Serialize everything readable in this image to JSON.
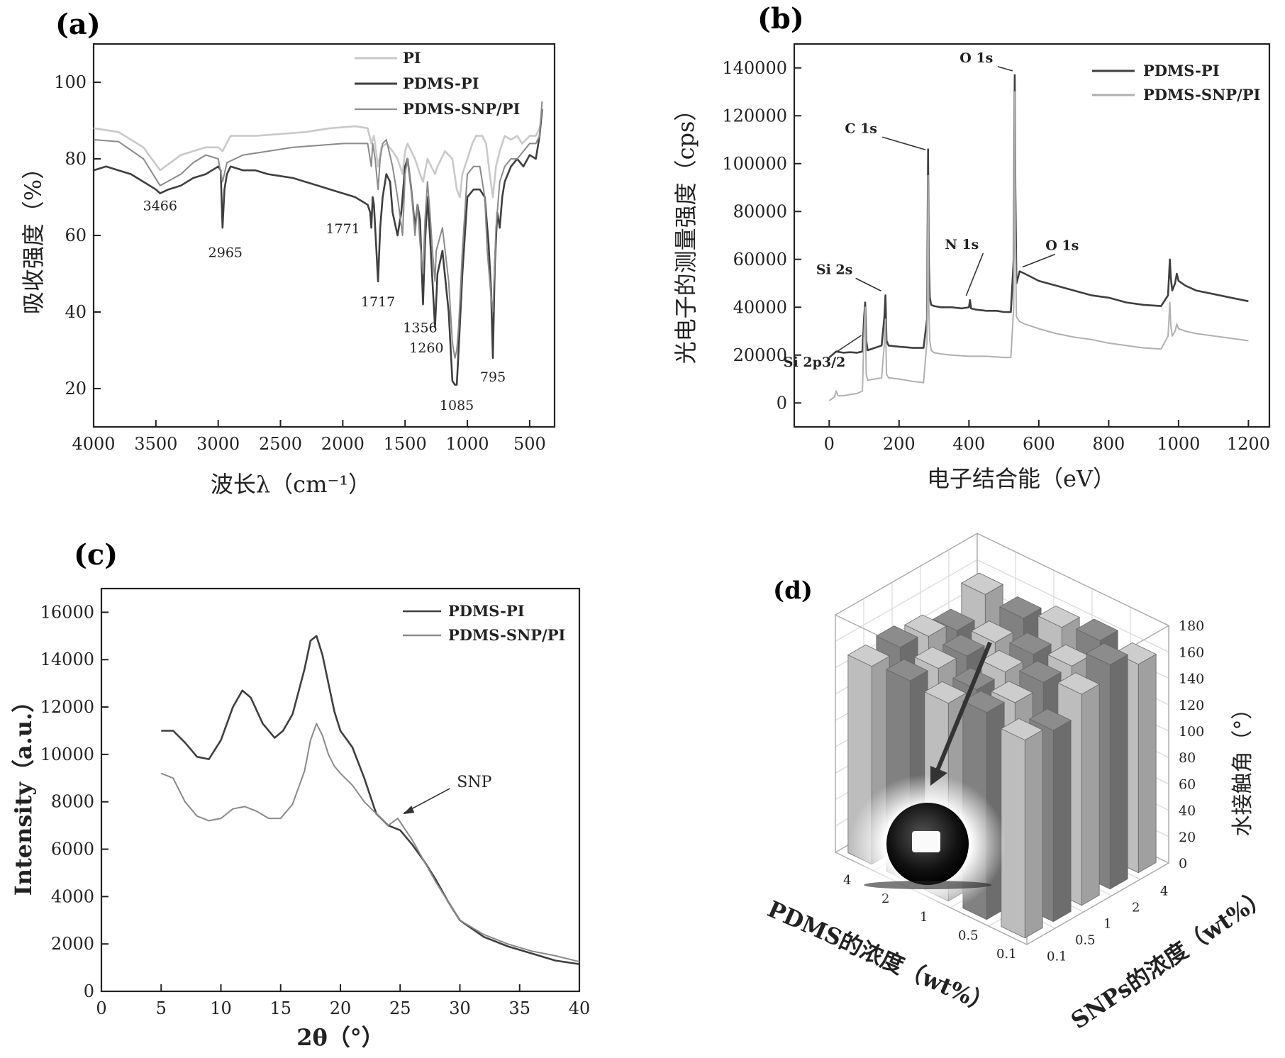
{
  "colors": {
    "PI": "#c9c9c9",
    "PDMS-PI": "#3f3f3f",
    "PDMS-SNP/PI": "#8a8a8a",
    "SNP_b": "#b0b0b0",
    "bar_dark": "#8b8b8b",
    "bar_light": "#cfcfcf"
  },
  "chart_data": [
    {
      "id": "a",
      "panel_label": "(a)",
      "type": "line",
      "xlabel": "波长λ（cm⁻¹）",
      "ylabel": "吸收强度（%）",
      "xlim": [
        4000,
        300
      ],
      "ylim": [
        10,
        110
      ],
      "xticks": [
        4000,
        3500,
        3000,
        2500,
        2000,
        1500,
        1000,
        500
      ],
      "yticks": [
        20,
        40,
        60,
        80,
        100
      ],
      "legend": [
        "PI",
        "PDMS-PI",
        "PDMS-SNP/PI"
      ],
      "legend_position": "top-right",
      "series": [
        {
          "name": "PI",
          "x": [
            4000,
            3800,
            3600,
            3466,
            3300,
            3100,
            3000,
            2965,
            2900,
            2700,
            2500,
            2300,
            2100,
            1900,
            1800,
            1771,
            1750,
            1717,
            1690,
            1650,
            1600,
            1560,
            1520,
            1500,
            1480,
            1420,
            1380,
            1356,
            1320,
            1290,
            1260,
            1240,
            1180,
            1120,
            1085,
            1060,
            1040,
            1000,
            960,
            930,
            880,
            850,
            820,
            795,
            770,
            740,
            700,
            650,
            600,
            560,
            500,
            450,
            420,
            400
          ],
          "y": [
            88,
            87,
            83,
            77,
            81,
            83,
            83,
            82,
            86,
            86,
            86.5,
            87,
            88,
            88.5,
            88,
            84,
            86,
            78,
            83,
            84,
            82,
            80,
            76,
            82,
            84,
            80,
            76,
            74,
            80,
            78,
            76,
            78,
            82,
            80,
            72,
            70,
            76,
            80,
            84,
            86,
            86,
            84,
            76,
            70,
            78,
            82,
            86,
            85,
            86,
            84,
            86,
            86,
            88,
            92
          ]
        },
        {
          "name": "PDMS-PI",
          "x": [
            4000,
            3900,
            3800,
            3700,
            3600,
            3500,
            3466,
            3400,
            3300,
            3200,
            3100,
            3050,
            3000,
            2980,
            2965,
            2950,
            2930,
            2900,
            2800,
            2700,
            2600,
            2500,
            2400,
            2300,
            2200,
            2100,
            2000,
            1900,
            1850,
            1800,
            1780,
            1771,
            1760,
            1750,
            1730,
            1717,
            1700,
            1680,
            1650,
            1620,
            1600,
            1560,
            1530,
            1500,
            1480,
            1450,
            1420,
            1400,
            1380,
            1356,
            1340,
            1320,
            1300,
            1280,
            1260,
            1240,
            1200,
            1150,
            1120,
            1100,
            1085,
            1070,
            1040,
            1000,
            950,
            900,
            860,
            830,
            810,
            795,
            780,
            760,
            740,
            720,
            700,
            650,
            600,
            550,
            500,
            450,
            420,
            400
          ],
          "y": [
            77,
            78,
            77,
            76,
            74,
            72,
            71,
            72,
            73,
            75,
            76,
            77,
            78,
            77,
            62,
            72,
            76,
            78,
            77,
            77,
            76,
            75.5,
            75,
            74,
            73,
            72,
            71,
            70,
            69,
            68,
            66,
            62,
            70,
            68,
            56,
            48,
            62,
            70,
            76,
            74,
            66,
            60,
            66,
            78,
            80,
            72,
            62,
            68,
            64,
            42,
            58,
            70,
            60,
            48,
            36,
            50,
            56,
            40,
            22,
            21,
            21,
            30,
            50,
            70,
            72,
            72,
            70,
            58,
            46,
            28,
            52,
            66,
            62,
            70,
            74,
            78,
            80,
            78,
            81,
            80,
            86,
            93
          ]
        },
        {
          "name": "PDMS-SNP/PI",
          "x": [
            4000,
            3800,
            3600,
            3466,
            3300,
            3200,
            3100,
            3000,
            2965,
            2930,
            2800,
            2600,
            2400,
            2200,
            2000,
            1900,
            1800,
            1771,
            1760,
            1740,
            1717,
            1700,
            1680,
            1650,
            1600,
            1560,
            1520,
            1500,
            1480,
            1450,
            1420,
            1400,
            1380,
            1356,
            1340,
            1320,
            1300,
            1280,
            1260,
            1250,
            1200,
            1150,
            1120,
            1100,
            1085,
            1070,
            1040,
            1000,
            950,
            900,
            860,
            840,
            810,
            795,
            770,
            740,
            700,
            650,
            600,
            550,
            500,
            450,
            420,
            400
          ],
          "y": [
            85,
            84.5,
            80,
            73,
            76,
            79,
            81,
            80,
            74,
            79,
            81,
            82,
            83,
            83.5,
            84,
            84,
            84,
            78,
            84,
            80,
            72,
            80,
            84,
            85,
            78,
            70,
            60,
            76,
            80,
            72,
            60,
            68,
            58,
            50,
            64,
            74,
            66,
            56,
            48,
            56,
            62,
            48,
            32,
            28,
            30,
            36,
            56,
            76,
            78,
            78,
            70,
            56,
            44,
            40,
            62,
            74,
            78,
            80,
            80,
            82,
            84,
            84,
            86,
            95
          ]
        }
      ],
      "annotations": [
        {
          "text": "3466",
          "x": 3466,
          "y": 71
        },
        {
          "text": "2965",
          "x": 2965,
          "y": 61
        },
        {
          "text": "1771",
          "x": 1771,
          "y": 62
        },
        {
          "text": "1717",
          "x": 1717,
          "y": 47
        },
        {
          "text": "1356",
          "x": 1356,
          "y": 41
        },
        {
          "text": "1260",
          "x": 1260,
          "y": 35
        },
        {
          "text": "1085",
          "x": 1085,
          "y": 20
        },
        {
          "text": "795",
          "x": 795,
          "y": 27
        }
      ]
    },
    {
      "id": "b",
      "panel_label": "(b)",
      "type": "line",
      "xlabel": "电子结合能（eV）",
      "ylabel": "光电子的测量强度（cps）",
      "xlim": [
        -100,
        1260
      ],
      "ylim": [
        -10000,
        150000
      ],
      "xticks": [
        0,
        200,
        400,
        600,
        800,
        1000,
        1200
      ],
      "yticks": [
        0,
        20000,
        40000,
        60000,
        80000,
        100000,
        120000,
        140000
      ],
      "legend": [
        "PDMS-PI",
        "PDMS-SNP/PI"
      ],
      "legend_position": "top-right",
      "series": [
        {
          "name": "PDMS-PI",
          "x": [
            0,
            20,
            40,
            60,
            80,
            95,
            100,
            103,
            106,
            110,
            130,
            150,
            158,
            161,
            164,
            170,
            200,
            240,
            270,
            280,
            283,
            285,
            288,
            292,
            300,
            320,
            350,
            380,
            400,
            403,
            406,
            420,
            450,
            480,
            500,
            520,
            528,
            531,
            533,
            536,
            545,
            560,
            600,
            650,
            700,
            750,
            800,
            850,
            900,
            950,
            970,
            975,
            978,
            982,
            990,
            995,
            1000,
            1020,
            1050,
            1100,
            1150,
            1200
          ],
          "y": [
            19000,
            21500,
            21000,
            21200,
            21000,
            21500,
            36000,
            42000,
            26000,
            22000,
            23000,
            24000,
            36000,
            45000,
            26000,
            24000,
            23500,
            23000,
            23000,
            35000,
            106000,
            60000,
            44000,
            41000,
            40500,
            40000,
            40000,
            39500,
            40000,
            43000,
            39500,
            39000,
            38500,
            38500,
            38000,
            38000,
            60000,
            137000,
            90000,
            50000,
            55000,
            54000,
            51000,
            49000,
            47000,
            45000,
            44000,
            42000,
            41000,
            40500,
            45000,
            60000,
            52000,
            47000,
            50000,
            54000,
            51000,
            49000,
            47000,
            45500,
            44000,
            42500
          ]
        },
        {
          "name": "PDMS-SNP/PI",
          "x": [
            0,
            15,
            20,
            25,
            40,
            60,
            80,
            95,
            100,
            103,
            106,
            110,
            130,
            150,
            158,
            161,
            164,
            170,
            200,
            240,
            270,
            280,
            283,
            285,
            288,
            292,
            300,
            320,
            350,
            400,
            450,
            500,
            520,
            528,
            531,
            533,
            536,
            545,
            560,
            600,
            650,
            700,
            750,
            800,
            850,
            900,
            950,
            970,
            975,
            978,
            982,
            990,
            995,
            1000,
            1020,
            1050,
            1100,
            1150,
            1200
          ],
          "y": [
            1000,
            2500,
            5000,
            3000,
            3000,
            3500,
            4000,
            5000,
            30000,
            40000,
            12000,
            9500,
            10000,
            10500,
            25000,
            35000,
            12000,
            10500,
            10000,
            9000,
            8500,
            26000,
            95000,
            40000,
            26000,
            22000,
            21000,
            20500,
            20000,
            19500,
            19500,
            19000,
            19000,
            40000,
            130000,
            70000,
            36000,
            34000,
            33000,
            31000,
            29000,
            27500,
            26500,
            25000,
            24000,
            23000,
            22500,
            28000,
            42000,
            32000,
            28000,
            30000,
            33000,
            31000,
            30000,
            29000,
            28000,
            27000,
            26000
          ]
        }
      ],
      "annotations": [
        {
          "text": "O 1s",
          "x": 533,
          "y": 137000
        },
        {
          "text": "C 1s",
          "x": 284,
          "y": 104000
        },
        {
          "text": "N 1s",
          "x": 400,
          "y": 43000
        },
        {
          "text": "O 1s",
          "x": 545,
          "y": 55000
        },
        {
          "text": "Si 2s",
          "x": 157,
          "y": 45000
        },
        {
          "text": "Si 2p3/2",
          "x": 100,
          "y": 30000
        }
      ]
    },
    {
      "id": "c",
      "panel_label": "(c)",
      "type": "line",
      "xlabel": "2θ（°）",
      "ylabel": "Intensity（a.u.）",
      "xlim": [
        0,
        40
      ],
      "ylim": [
        0,
        17000
      ],
      "xticks": [
        0,
        5,
        10,
        15,
        20,
        25,
        30,
        35,
        40
      ],
      "yticks": [
        0,
        2000,
        4000,
        6000,
        8000,
        10000,
        12000,
        14000,
        16000
      ],
      "legend": [
        "PDMS-PI",
        "PDMS-SNP/PI"
      ],
      "legend_position": "top-right",
      "series": [
        {
          "name": "PDMS-PI",
          "x": [
            5,
            6,
            7,
            8,
            9,
            10,
            11,
            11.8,
            12.5,
            13.5,
            14.5,
            15.2,
            16,
            17,
            17.5,
            18,
            18.5,
            19,
            19.5,
            20,
            21,
            22,
            23,
            24,
            25,
            26,
            27,
            28,
            29,
            30,
            32,
            34,
            36,
            38,
            40
          ],
          "y": [
            11000,
            11000,
            10500,
            9900,
            9800,
            10600,
            12000,
            12700,
            12400,
            11300,
            10700,
            11000,
            11700,
            13600,
            14800,
            15000,
            14200,
            13000,
            11800,
            11000,
            10300,
            9000,
            7500,
            7000,
            6800,
            6200,
            5500,
            4700,
            3800,
            3000,
            2300,
            1900,
            1600,
            1300,
            1150
          ]
        },
        {
          "name": "PDMS-SNP/PI",
          "x": [
            5,
            6,
            7,
            8,
            9,
            10,
            11,
            12,
            13,
            14,
            15,
            16,
            17,
            17.5,
            18,
            18.5,
            19,
            19.5,
            20,
            21,
            22,
            23,
            24,
            24.8,
            26,
            27,
            28,
            29,
            30,
            32,
            34,
            36,
            38,
            40
          ],
          "y": [
            9200,
            9000,
            8000,
            7400,
            7200,
            7300,
            7700,
            7800,
            7600,
            7300,
            7300,
            7900,
            9300,
            10600,
            11300,
            10800,
            10000,
            9500,
            9200,
            8700,
            8000,
            7500,
            7000,
            7300,
            6400,
            5500,
            4600,
            3800,
            3000,
            2400,
            2000,
            1700,
            1500,
            1250
          ]
        }
      ],
      "annotations": [
        {
          "text": "SNP",
          "x": 25,
          "y": 7300
        }
      ]
    },
    {
      "id": "d",
      "panel_label": "(d)",
      "type": "bar3d",
      "zlabel": "水接触角（°）",
      "xlabel": "PDMS的浓度（wt%）",
      "ylabel": "SNPs的浓度（wt%）",
      "zlim": [
        0,
        180
      ],
      "zticks": [
        0,
        20,
        40,
        60,
        80,
        100,
        120,
        140,
        160,
        180
      ],
      "pdms_categories": [
        "4",
        "2",
        "1",
        "0.5",
        "0.1"
      ],
      "snp_categories": [
        "0.1",
        "0.5",
        "1",
        "2",
        "4"
      ],
      "values": [
        [
          150,
          152,
          148,
          140,
          155
        ],
        [
          153,
          150,
          147,
          145,
          151
        ],
        [
          150,
          148,
          149,
          150,
          158
        ],
        [
          157,
          152,
          155,
          155,
          162
        ],
        [
          150,
          145,
          160,
          170,
          158
        ]
      ]
    }
  ]
}
